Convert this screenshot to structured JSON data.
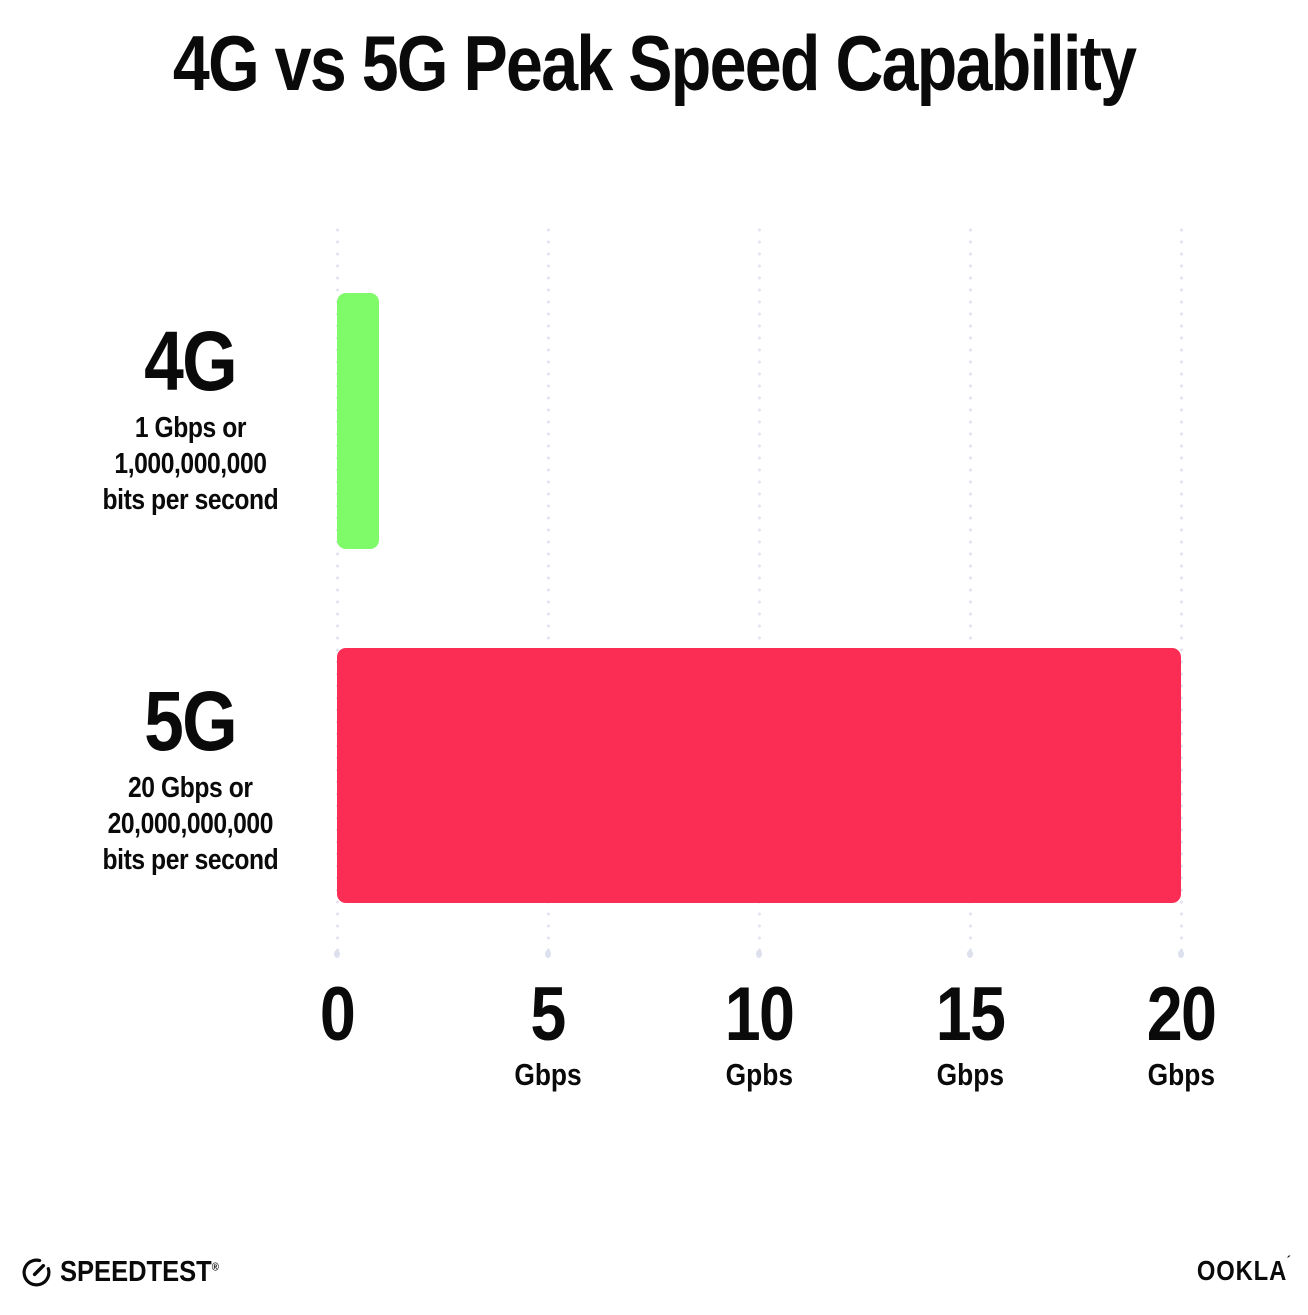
{
  "title": "4G vs 5G Peak Speed Capability",
  "chart_data": {
    "type": "bar",
    "orientation": "horizontal",
    "title": "4G vs 5G Peak Speed Capability",
    "categories": [
      "4G",
      "5G"
    ],
    "values": [
      1,
      20
    ],
    "value_unit": "Gbps",
    "xlim": [
      0,
      20
    ],
    "grid": "dotted vertical gridlines at 0, 5, 10, 15, 20",
    "legend": "none",
    "bar_colors": [
      "#7ffa68",
      "#fc2d55"
    ],
    "series_labels": [
      {
        "name": "4G",
        "sublabel_lines": [
          "1 Gbps or",
          "1,000,000,000",
          "bits per second"
        ]
      },
      {
        "name": "5G",
        "sublabel_lines": [
          "20 Gbps or",
          "20,000,000,000",
          "bits per second"
        ]
      }
    ],
    "x_ticks": [
      {
        "value": 0,
        "label": "0",
        "unit": ""
      },
      {
        "value": 5,
        "label": "5",
        "unit": "Gbps"
      },
      {
        "value": 10,
        "label": "10",
        "unit": "Gpbs"
      },
      {
        "value": 15,
        "label": "15",
        "unit": "Gbps"
      },
      {
        "value": 20,
        "label": "20",
        "unit": "Gbps"
      }
    ]
  },
  "footer": {
    "speedtest_label": "SPEEDTEST",
    "speedtest_mark": "®",
    "ookla_label": "OOKLA",
    "ookla_mark": "´"
  },
  "colors": {
    "background": "#ffffff",
    "text": "#0a0a0a",
    "bar_4g": "#7ffa68",
    "bar_5g": "#fc2d55",
    "gridline": "#e0e3ef"
  }
}
